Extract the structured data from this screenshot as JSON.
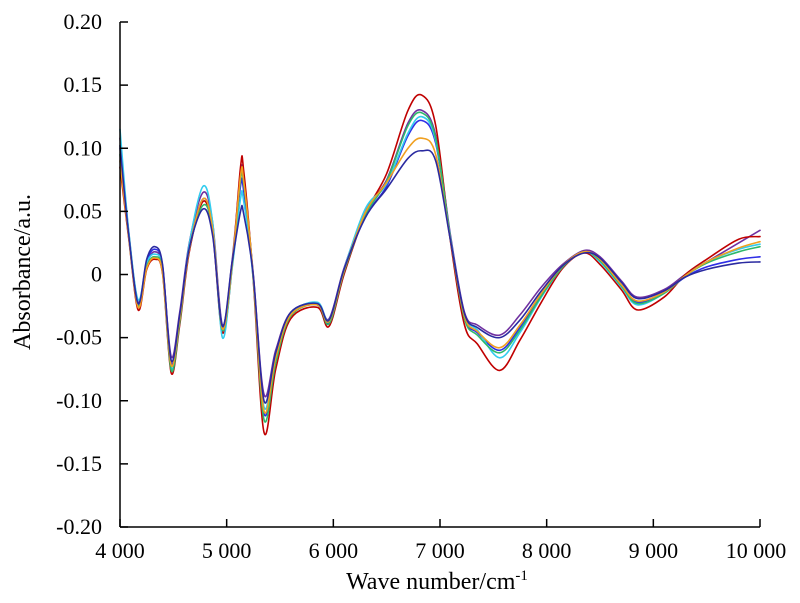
{
  "chart_data": {
    "type": "line",
    "title": "",
    "xlabel": "Wave number/cm",
    "xlabel_superscript": "-1",
    "ylabel": "Absorbance/a.u.",
    "xlim": [
      4000,
      10000
    ],
    "ylim": [
      -0.2,
      0.2
    ],
    "xticks": [
      4000,
      5000,
      6000,
      7000,
      8000,
      9000,
      10000
    ],
    "xtick_labels": [
      "4 000",
      "5 000",
      "6 000",
      "7 000",
      "8 000",
      "9 000",
      "10 000"
    ],
    "yticks": [
      -0.2,
      -0.15,
      -0.1,
      -0.05,
      0,
      0.05,
      0.1,
      0.15,
      0.2
    ],
    "ytick_labels": [
      "-0.20",
      "-0.15",
      "-0.10",
      "-0.05",
      "0",
      "0.05",
      "0.10",
      "0.15",
      "0.20"
    ],
    "grid": false,
    "legend": "none",
    "x": [
      4000,
      4080,
      4170,
      4250,
      4330,
      4400,
      4480,
      4560,
      4650,
      4780,
      4870,
      4960,
      5050,
      5130,
      5160,
      5250,
      5350,
      5460,
      5600,
      5850,
      5960,
      6100,
      6300,
      6500,
      6700,
      6830,
      6960,
      7100,
      7230,
      7350,
      7560,
      7750,
      7950,
      8150,
      8350,
      8500,
      8700,
      8850,
      9100,
      9300,
      9500,
      9800,
      10000
    ],
    "series": [
      {
        "color": "#7030a0",
        "values": [
          0.108,
          0.035,
          -0.022,
          0.008,
          0.018,
          0.005,
          -0.065,
          -0.03,
          0.025,
          0.065,
          0.04,
          -0.04,
          0.01,
          0.08,
          0.075,
          0.0,
          -0.095,
          -0.06,
          -0.03,
          -0.023,
          -0.035,
          0.005,
          0.05,
          0.075,
          0.12,
          0.13,
          0.11,
          0.03,
          -0.03,
          -0.04,
          -0.048,
          -0.032,
          -0.01,
          0.008,
          0.019,
          0.014,
          -0.005,
          -0.018,
          -0.012,
          0.0,
          0.01,
          0.025,
          0.035
        ]
      },
      {
        "color": "#c00000",
        "values": [
          0.085,
          0.03,
          -0.028,
          0.004,
          0.012,
          0.0,
          -0.078,
          -0.04,
          0.018,
          0.058,
          0.032,
          -0.046,
          0.005,
          0.085,
          0.082,
          -0.005,
          -0.125,
          -0.075,
          -0.035,
          -0.026,
          -0.041,
          0.0,
          0.048,
          0.08,
          0.13,
          0.142,
          0.118,
          0.025,
          -0.04,
          -0.055,
          -0.076,
          -0.052,
          -0.022,
          0.005,
          0.017,
          0.008,
          -0.012,
          -0.028,
          -0.018,
          0.0,
          0.012,
          0.028,
          0.03
        ]
      },
      {
        "color": "#2e2ee6",
        "values": [
          0.1,
          0.034,
          -0.024,
          0.01,
          0.02,
          0.006,
          -0.07,
          -0.034,
          0.022,
          0.06,
          0.036,
          -0.042,
          0.008,
          0.07,
          0.066,
          -0.002,
          -0.11,
          -0.068,
          -0.032,
          -0.024,
          -0.038,
          0.003,
          0.046,
          0.07,
          0.11,
          0.122,
          0.104,
          0.028,
          -0.034,
          -0.046,
          -0.06,
          -0.042,
          -0.016,
          0.006,
          0.018,
          0.012,
          -0.008,
          -0.022,
          -0.014,
          -0.002,
          0.006,
          0.012,
          0.014
        ]
      },
      {
        "color": "#33ccee",
        "values": [
          0.115,
          0.036,
          -0.02,
          0.009,
          0.016,
          0.004,
          -0.074,
          -0.036,
          0.024,
          0.07,
          0.04,
          -0.05,
          0.004,
          0.06,
          0.058,
          -0.004,
          -0.105,
          -0.064,
          -0.031,
          -0.022,
          -0.036,
          0.004,
          0.052,
          0.072,
          0.112,
          0.125,
          0.106,
          0.028,
          -0.032,
          -0.044,
          -0.066,
          -0.046,
          -0.018,
          0.006,
          0.018,
          0.01,
          -0.01,
          -0.024,
          -0.015,
          -0.001,
          0.01,
          0.02,
          0.024
        ]
      },
      {
        "color": "#2eb86b",
        "values": [
          0.095,
          0.032,
          -0.025,
          0.006,
          0.014,
          0.002,
          -0.076,
          -0.038,
          0.02,
          0.055,
          0.034,
          -0.044,
          0.006,
          0.075,
          0.072,
          -0.003,
          -0.115,
          -0.07,
          -0.033,
          -0.024,
          -0.039,
          0.002,
          0.047,
          0.074,
          0.118,
          0.128,
          0.108,
          0.027,
          -0.035,
          -0.048,
          -0.062,
          -0.044,
          -0.017,
          0.006,
          0.018,
          0.011,
          -0.009,
          -0.023,
          -0.015,
          -0.001,
          0.009,
          0.018,
          0.022
        ]
      },
      {
        "color": "#f0a020",
        "values": [
          0.09,
          0.031,
          -0.026,
          0.005,
          0.013,
          0.001,
          -0.072,
          -0.035,
          0.02,
          0.06,
          0.035,
          -0.043,
          0.007,
          0.078,
          0.074,
          -0.002,
          -0.108,
          -0.066,
          -0.032,
          -0.024,
          -0.037,
          0.003,
          0.049,
          0.073,
          0.1,
          0.108,
          0.095,
          0.026,
          -0.033,
          -0.045,
          -0.058,
          -0.04,
          -0.015,
          0.007,
          0.018,
          0.012,
          -0.008,
          -0.021,
          -0.014,
          -0.001,
          0.01,
          0.021,
          0.026
        ]
      },
      {
        "color": "#2a2aa0",
        "values": [
          0.102,
          0.033,
          -0.023,
          0.012,
          0.022,
          0.007,
          -0.068,
          -0.032,
          0.021,
          0.052,
          0.03,
          -0.041,
          0.009,
          0.05,
          0.048,
          -0.001,
          -0.1,
          -0.062,
          -0.03,
          -0.023,
          -0.036,
          0.004,
          0.045,
          0.068,
          0.092,
          0.098,
          0.09,
          0.026,
          -0.031,
          -0.042,
          -0.05,
          -0.036,
          -0.013,
          0.007,
          0.017,
          0.013,
          -0.006,
          -0.019,
          -0.013,
          -0.002,
          0.004,
          0.009,
          0.01
        ]
      }
    ]
  }
}
